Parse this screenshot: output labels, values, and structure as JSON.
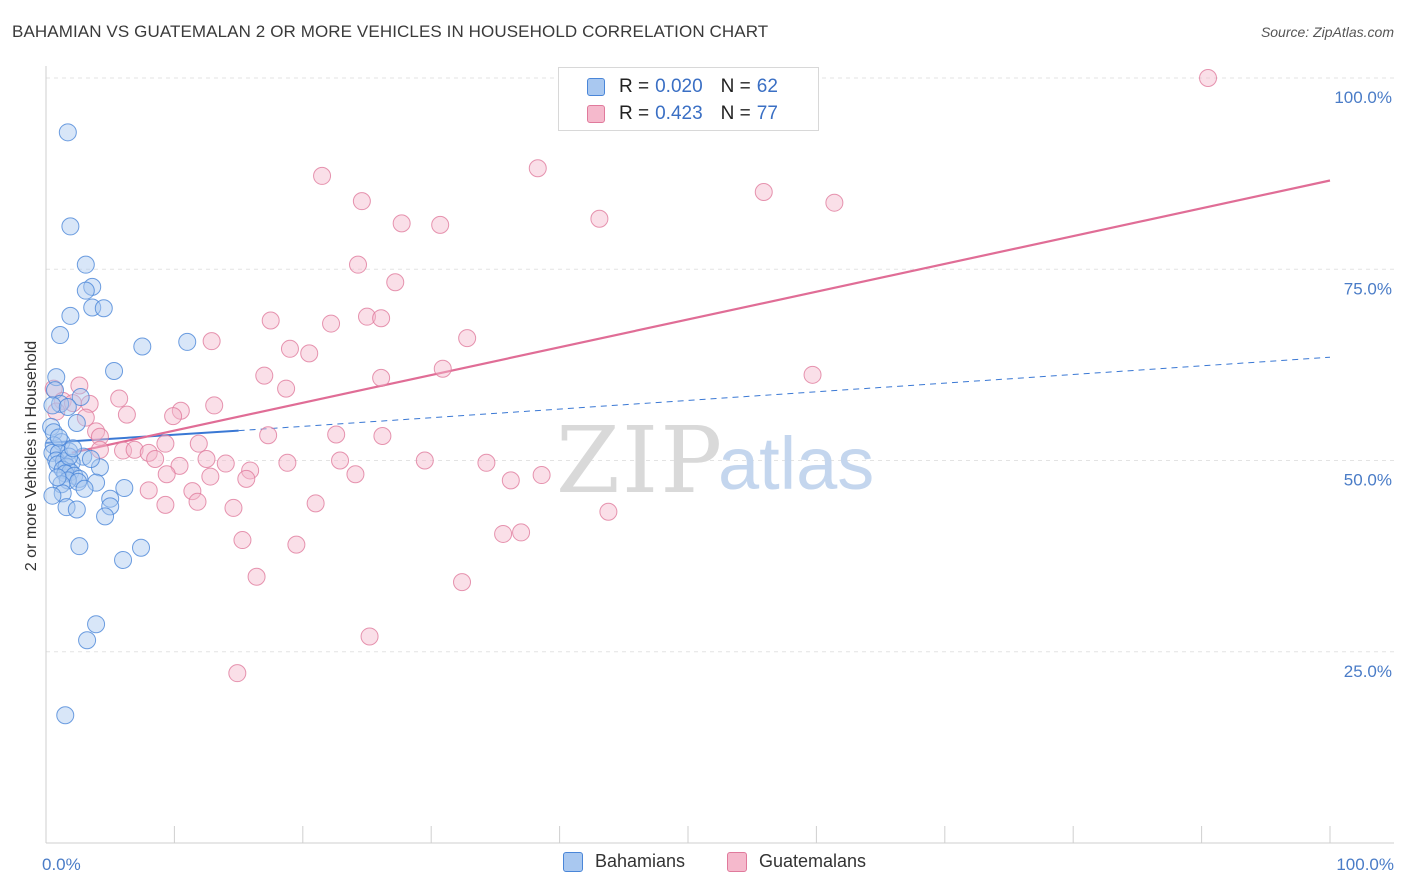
{
  "title": "BAHAMIAN VS GUATEMALAN 2 OR MORE VEHICLES IN HOUSEHOLD CORRELATION CHART",
  "source": "Source: ZipAtlas.com",
  "legend": {
    "rows": [
      {
        "r_label": "R =",
        "r_value": "0.020",
        "n_label": "N =",
        "n_value": "62"
      },
      {
        "r_label": "R =",
        "r_value": "0.423",
        "n_label": "N =",
        "n_value": "77"
      }
    ]
  },
  "bottom_legend": [
    "Bahamians",
    "Guatemalans"
  ],
  "watermark": {
    "zip": "ZIP",
    "atlas": "atlas"
  },
  "colors": {
    "bahamian_fill": "#a9c8f0",
    "bahamian_stroke": "#4a86d8",
    "bahamian_line": "#3a78d4",
    "guatemalan_fill": "#f5b9cc",
    "guatemalan_stroke": "#e07a9c",
    "guatemalan_line": "#e06d96",
    "grid": "#e3e3e3",
    "tick_text": "#4a7cc7"
  },
  "chart_data": {
    "type": "scatter",
    "title": "BAHAMIAN VS GUATEMALAN 2 OR MORE VEHICLES IN HOUSEHOLD CORRELATION CHART",
    "xlabel": "",
    "ylabel": "2 or more Vehicles in Household",
    "xlim": [
      0,
      100
    ],
    "ylim": [
      0,
      100
    ],
    "x_tick_labels": [
      "0.0%",
      "100.0%"
    ],
    "y_ticks": [
      25,
      50,
      75,
      100
    ],
    "y_tick_labels": [
      "25.0%",
      "50.0%",
      "75.0%",
      "100.0%"
    ],
    "grid": true,
    "series": [
      {
        "name": "Bahamians",
        "R": 0.02,
        "N": 62,
        "trend": {
          "x": [
            0,
            15
          ],
          "y": [
            52.3,
            53.9
          ],
          "dashed_to": [
            100,
            63.5
          ]
        },
        "points": [
          [
            1.7,
            92.9
          ],
          [
            1.9,
            80.6
          ],
          [
            3.1,
            75.6
          ],
          [
            3.6,
            72.7
          ],
          [
            3.1,
            72.2
          ],
          [
            3.6,
            70.0
          ],
          [
            4.5,
            69.9
          ],
          [
            1.9,
            68.9
          ],
          [
            1.1,
            66.4
          ],
          [
            7.5,
            64.9
          ],
          [
            11.0,
            65.5
          ],
          [
            5.3,
            61.7
          ],
          [
            0.8,
            60.9
          ],
          [
            0.7,
            59.2
          ],
          [
            2.7,
            58.3
          ],
          [
            1.1,
            57.4
          ],
          [
            0.5,
            57.2
          ],
          [
            1.7,
            57.0
          ],
          [
            0.4,
            54.4
          ],
          [
            2.4,
            54.9
          ],
          [
            0.6,
            53.7
          ],
          [
            1.2,
            52.4
          ],
          [
            0.6,
            52.0
          ],
          [
            1.8,
            51.2
          ],
          [
            0.5,
            51.0
          ],
          [
            1.0,
            51.0
          ],
          [
            2.9,
            50.5
          ],
          [
            0.8,
            50.0
          ],
          [
            1.4,
            49.9
          ],
          [
            2.0,
            49.7
          ],
          [
            0.9,
            49.5
          ],
          [
            1.6,
            49.2
          ],
          [
            1.3,
            48.8
          ],
          [
            4.2,
            49.1
          ],
          [
            1.9,
            48.5
          ],
          [
            1.5,
            48.3
          ],
          [
            2.2,
            48.0
          ],
          [
            2.6,
            47.6
          ],
          [
            1.7,
            47.4
          ],
          [
            2.5,
            47.2
          ],
          [
            3.9,
            47.1
          ],
          [
            1.2,
            46.9
          ],
          [
            3.0,
            46.3
          ],
          [
            6.1,
            46.4
          ],
          [
            1.3,
            45.7
          ],
          [
            0.5,
            45.4
          ],
          [
            5.0,
            45.0
          ],
          [
            1.6,
            43.9
          ],
          [
            2.4,
            43.6
          ],
          [
            5.0,
            44.0
          ],
          [
            4.6,
            42.7
          ],
          [
            2.6,
            38.8
          ],
          [
            7.4,
            38.6
          ],
          [
            6.0,
            37.0
          ],
          [
            3.9,
            28.6
          ],
          [
            3.2,
            26.5
          ],
          [
            1.5,
            16.7
          ],
          [
            1.8,
            50.5
          ],
          [
            2.1,
            51.6
          ],
          [
            0.9,
            47.8
          ],
          [
            3.5,
            50.2
          ],
          [
            1.0,
            53.0
          ]
        ]
      },
      {
        "name": "Guatemalans",
        "R": 0.423,
        "N": 77,
        "trend": {
          "x": [
            2,
            100
          ],
          "y": [
            51.0,
            86.6
          ]
        },
        "points": [
          [
            90.5,
            100.0
          ],
          [
            21.5,
            87.2
          ],
          [
            38.3,
            88.2
          ],
          [
            55.9,
            85.1
          ],
          [
            61.4,
            83.7
          ],
          [
            24.6,
            83.9
          ],
          [
            27.7,
            81.0
          ],
          [
            30.7,
            80.8
          ],
          [
            43.1,
            81.6
          ],
          [
            24.3,
            75.6
          ],
          [
            27.2,
            73.3
          ],
          [
            17.5,
            68.3
          ],
          [
            22.2,
            67.9
          ],
          [
            25.0,
            68.8
          ],
          [
            26.1,
            68.6
          ],
          [
            32.8,
            66.0
          ],
          [
            12.9,
            65.6
          ],
          [
            19.0,
            64.6
          ],
          [
            20.5,
            64.0
          ],
          [
            30.9,
            62.0
          ],
          [
            17.0,
            61.1
          ],
          [
            26.1,
            60.8
          ],
          [
            59.7,
            61.2
          ],
          [
            2.6,
            59.8
          ],
          [
            18.7,
            59.4
          ],
          [
            0.6,
            59.4
          ],
          [
            5.7,
            58.1
          ],
          [
            1.3,
            57.8
          ],
          [
            2.1,
            57.5
          ],
          [
            3.4,
            57.4
          ],
          [
            13.1,
            57.2
          ],
          [
            10.5,
            56.5
          ],
          [
            9.9,
            55.8
          ],
          [
            6.3,
            56.0
          ],
          [
            3.1,
            55.6
          ],
          [
            0.8,
            56.4
          ],
          [
            3.9,
            53.8
          ],
          [
            4.2,
            53.1
          ],
          [
            17.3,
            53.3
          ],
          [
            22.6,
            53.4
          ],
          [
            26.2,
            53.2
          ],
          [
            9.3,
            52.2
          ],
          [
            11.9,
            52.2
          ],
          [
            4.2,
            51.4
          ],
          [
            6.0,
            51.3
          ],
          [
            6.9,
            51.4
          ],
          [
            8.0,
            51.0
          ],
          [
            8.5,
            50.2
          ],
          [
            12.5,
            50.2
          ],
          [
            14.0,
            49.6
          ],
          [
            18.8,
            49.7
          ],
          [
            22.9,
            50.0
          ],
          [
            29.5,
            50.0
          ],
          [
            34.3,
            49.7
          ],
          [
            10.4,
            49.3
          ],
          [
            15.9,
            48.7
          ],
          [
            9.4,
            48.2
          ],
          [
            12.8,
            47.9
          ],
          [
            24.1,
            48.2
          ],
          [
            38.6,
            48.1
          ],
          [
            15.6,
            47.6
          ],
          [
            36.2,
            47.4
          ],
          [
            8.0,
            46.1
          ],
          [
            11.4,
            46.0
          ],
          [
            9.3,
            44.2
          ],
          [
            11.8,
            44.6
          ],
          [
            14.6,
            43.8
          ],
          [
            21.0,
            44.4
          ],
          [
            43.8,
            43.3
          ],
          [
            35.6,
            40.4
          ],
          [
            37.0,
            40.6
          ],
          [
            15.3,
            39.6
          ],
          [
            19.5,
            39.0
          ],
          [
            16.4,
            34.8
          ],
          [
            32.4,
            34.1
          ],
          [
            25.2,
            27.0
          ],
          [
            14.9,
            22.2
          ]
        ]
      }
    ]
  }
}
